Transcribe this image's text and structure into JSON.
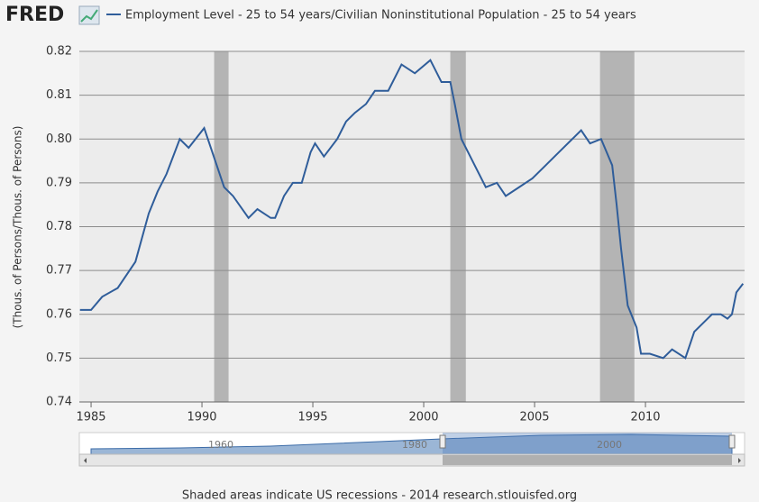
{
  "chart_data": {
    "type": "line",
    "logo": "FRED",
    "ylabel": "(Thous. of Persons/Thous. of Persons)",
    "note": "Shaded areas indicate US recessions - 2014 research.stlouisfed.org",
    "x": [
      1984.5,
      1985,
      1985.5,
      1986.2,
      1987,
      1987.6,
      1988,
      1988.4,
      1989,
      1989.4,
      1990.1,
      1990.6,
      1991,
      1991.4,
      1992.1,
      1992.5,
      1993.1,
      1993.3,
      1993.7,
      1994.1,
      1994.5,
      1994.9,
      1995.1,
      1995.5,
      1996.1,
      1996.5,
      1996.9,
      1997.4,
      1997.8,
      1998.4,
      1999,
      1999.6,
      2000.3,
      2000.8,
      2001.2,
      2001.4,
      2001.7,
      2002,
      2002.4,
      2002.8,
      2003.3,
      2003.7,
      2004.3,
      2004.9,
      2005.5,
      2006.1,
      2006.7,
      2007.1,
      2007.5,
      2008,
      2008.5,
      2008.7,
      2008.9,
      2009.2,
      2009.6,
      2009.8,
      2010.2,
      2010.8,
      2011.2,
      2011.8,
      2012.2,
      2012.6,
      2013,
      2013.4,
      2013.7,
      2013.9,
      2014.1,
      2014.4
    ],
    "series": [
      {
        "name": "Employment Level - 25 to 54 years/Civilian Noninstitutional Population - 25 to 54 years",
        "color": "#2f5d9a",
        "values": [
          0.761,
          0.761,
          0.764,
          0.766,
          0.772,
          0.783,
          0.788,
          0.792,
          0.8,
          0.798,
          0.8025,
          0.795,
          0.789,
          0.787,
          0.782,
          0.784,
          0.782,
          0.782,
          0.787,
          0.79,
          0.79,
          0.797,
          0.799,
          0.796,
          0.8,
          0.804,
          0.806,
          0.808,
          0.811,
          0.811,
          0.817,
          0.815,
          0.818,
          0.813,
          0.813,
          0.808,
          0.8,
          0.797,
          0.793,
          0.789,
          0.79,
          0.787,
          0.789,
          0.791,
          0.794,
          0.797,
          0.8,
          0.802,
          0.799,
          0.8,
          0.794,
          0.785,
          0.775,
          0.762,
          0.757,
          0.751,
          0.751,
          0.75,
          0.752,
          0.75,
          0.756,
          0.758,
          0.76,
          0.76,
          0.759,
          0.76,
          0.765,
          0.767
        ]
      }
    ],
    "recessions": [
      [
        1990.55,
        1991.2
      ],
      [
        2001.2,
        2001.9
      ],
      [
        2007.95,
        2009.5
      ]
    ],
    "xlim": [
      1984.47,
      2014.47
    ],
    "xticks": [
      1985,
      1990,
      1995,
      2000,
      2005,
      2010
    ],
    "ylim": [
      0.74,
      0.82
    ],
    "yticks": [
      0.74,
      0.75,
      0.76,
      0.77,
      0.78,
      0.79,
      {
        "value": 0.8,
        "label": "0.80"
      },
      0.81,
      0.82
    ],
    "grid": true,
    "navigator_labels": [
      "1960",
      "1980",
      "2000"
    ]
  }
}
